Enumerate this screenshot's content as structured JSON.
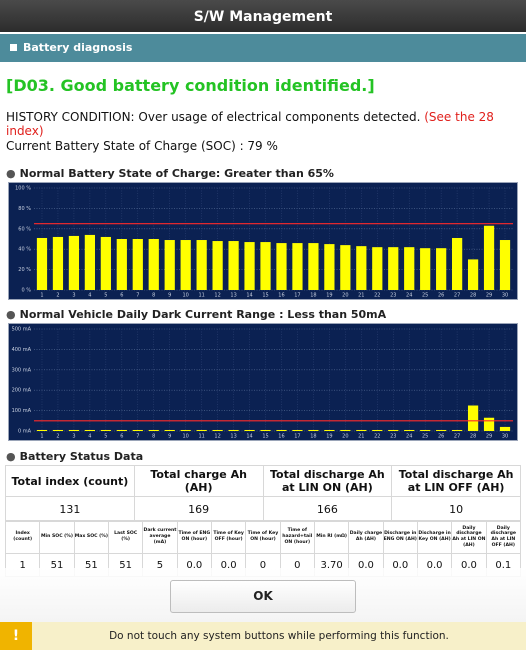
{
  "header": {
    "title": "S/W Management"
  },
  "section": {
    "title": "Battery diagnosis"
  },
  "diagnosis": {
    "code": "[D03. Good battery condition identified.]",
    "history": "HISTORY CONDITION: Over usage of electrical components detected.",
    "history_note": "(See the 28 index)",
    "soc": "Current Battery State of Charge (SOC) : 79 %"
  },
  "chart_data": [
    {
      "type": "bar",
      "title": "Normal Battery State of Charge: Greater than 65%",
      "categories": [
        "1",
        "2",
        "3",
        "4",
        "5",
        "6",
        "7",
        "8",
        "9",
        "10",
        "11",
        "12",
        "13",
        "14",
        "15",
        "16",
        "17",
        "18",
        "19",
        "20",
        "21",
        "22",
        "23",
        "24",
        "25",
        "26",
        "27",
        "28",
        "29",
        "30"
      ],
      "values": [
        51,
        52,
        53,
        54,
        52,
        50,
        50,
        50,
        49,
        49,
        49,
        48,
        48,
        47,
        47,
        46,
        46,
        46,
        45,
        44,
        43,
        42,
        42,
        42,
        41,
        41,
        51,
        30,
        63,
        49
      ],
      "color": "#ffff00",
      "background": "#0b2152",
      "grid": true,
      "ylim": [
        0,
        100
      ],
      "yticks": [
        {
          "value": 0,
          "label": "0 %"
        },
        {
          "value": 20,
          "label": "20 %"
        },
        {
          "value": 40,
          "label": "40 %"
        },
        {
          "value": 60,
          "label": "60 %"
        },
        {
          "value": 80,
          "label": "80 %"
        },
        {
          "value": 100,
          "label": "100 %"
        }
      ],
      "reference_line": 65,
      "reference_color": "#ff2a2a"
    },
    {
      "type": "bar",
      "title": "Normal Vehicle Daily Dark Current Range : Less than 50mA",
      "categories": [
        "1",
        "2",
        "3",
        "4",
        "5",
        "6",
        "7",
        "8",
        "9",
        "10",
        "11",
        "12",
        "13",
        "14",
        "15",
        "16",
        "17",
        "18",
        "19",
        "20",
        "21",
        "22",
        "23",
        "24",
        "25",
        "26",
        "27",
        "28",
        "29",
        "30"
      ],
      "values": [
        5,
        5,
        5,
        5,
        5,
        5,
        5,
        5,
        5,
        5,
        5,
        5,
        5,
        5,
        5,
        5,
        5,
        5,
        5,
        5,
        5,
        5,
        5,
        5,
        5,
        5,
        5,
        125,
        65,
        20
      ],
      "color": "#ffff00",
      "background": "#0b2152",
      "grid": true,
      "ylim": [
        0,
        500
      ],
      "yticks": [
        {
          "value": 0,
          "label": "0 mA"
        },
        {
          "value": 100,
          "label": "100 mA"
        },
        {
          "value": 200,
          "label": "200 mA"
        },
        {
          "value": 300,
          "label": "300 mA"
        },
        {
          "value": 400,
          "label": "400 mA"
        },
        {
          "value": 500,
          "label": "500 mA"
        }
      ],
      "reference_line": 50,
      "reference_color": "#ff2a2a"
    }
  ],
  "table": {
    "title": "Battery Status Data",
    "summary_headers": [
      "Total index (count)",
      "Total charge Ah (AH)",
      "Total discharge Ah at LIN ON (AH)",
      "Total discharge Ah at LIN OFF (AH)"
    ],
    "summary_values": [
      131,
      169,
      166,
      10
    ],
    "detail_headers": [
      "Index (count)",
      "Min SOC (%)",
      "Max SOC (%)",
      "Last SOC (%)",
      "Dark current average (mA)",
      "Time of ENG ON (hour)",
      "Time of Key OFF (hour)",
      "Time of Key ON (hour)",
      "Time of hazard+tail ON (hour)",
      "Min RI (mΩ)",
      "Daily charge Ah (AH)",
      "Discharge in ENG ON (AH)",
      "Discharge in Key ON (AH)",
      "Daily discharge Ah at LIN ON (AH)",
      "Daily discharge Ah at LIN OFF (AH)"
    ],
    "detail_rows": [
      [
        1,
        51,
        51,
        51,
        5,
        "0.0",
        "0.0",
        0,
        0,
        "3.70",
        "0.0",
        "0.0",
        "0.0",
        "0.0",
        "0.1"
      ]
    ]
  },
  "button": {
    "label": "OK"
  },
  "footer": {
    "icon": "!",
    "message": "Do not touch any system buttons while performing this function."
  }
}
